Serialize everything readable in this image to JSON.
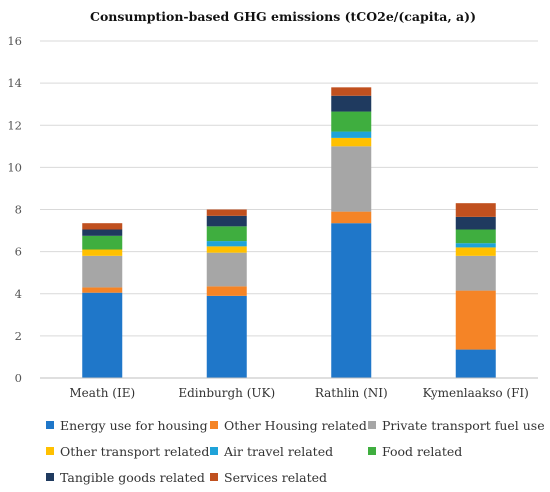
{
  "chart_data": {
    "type": "bar",
    "stacked": true,
    "title": "Consumption-based GHG emissions (tCO2e/(capita, a))",
    "xlabel": "",
    "ylabel": "",
    "ylim": [
      0,
      16
    ],
    "yticks": [
      "0",
      "2",
      "4",
      "6",
      "8",
      "10",
      "12",
      "14",
      "16"
    ],
    "grid": true,
    "legend_position": "bottom",
    "categories": [
      "Meath (IE)",
      "Edinburgh (UK)",
      "Rathlin (NI)",
      "Kymenlaakso (FI)"
    ],
    "series": [
      {
        "name": "Energy use for housing",
        "color": "#1f77c9",
        "values": [
          4.05,
          3.9,
          7.35,
          1.35
        ]
      },
      {
        "name": "Other Housing related",
        "color": "#f58426",
        "values": [
          0.25,
          0.45,
          0.55,
          2.8
        ]
      },
      {
        "name": "Private transport fuel use",
        "color": "#a6a6a6",
        "values": [
          1.5,
          1.6,
          3.1,
          1.65
        ]
      },
      {
        "name": "Other transport related",
        "color": "#ffc000",
        "values": [
          0.3,
          0.3,
          0.4,
          0.4
        ]
      },
      {
        "name": "Air travel related",
        "color": "#1fa3d9",
        "values": [
          0.0,
          0.25,
          0.3,
          0.2
        ]
      },
      {
        "name": "Food related",
        "color": "#3fae3f",
        "values": [
          0.65,
          0.7,
          0.95,
          0.65
        ]
      },
      {
        "name": "Tangible goods related",
        "color": "#1f3a5f",
        "values": [
          0.3,
          0.5,
          0.75,
          0.6
        ]
      },
      {
        "name": "Services related",
        "color": "#c0501f",
        "values": [
          0.3,
          0.3,
          0.4,
          0.65
        ]
      }
    ]
  }
}
